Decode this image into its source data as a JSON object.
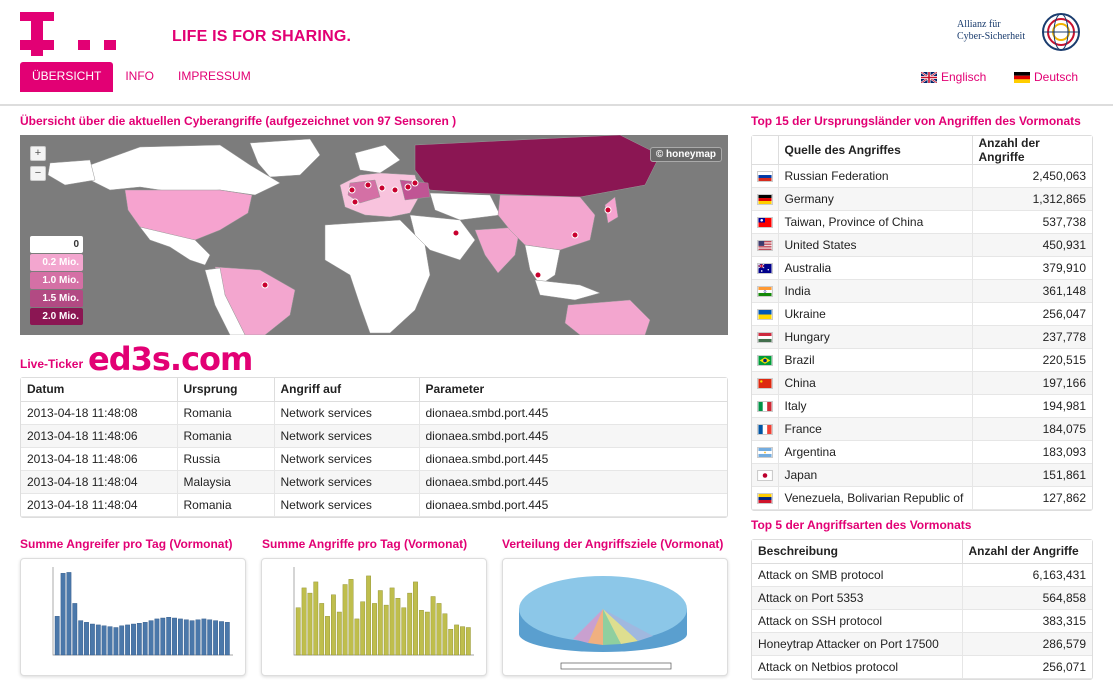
{
  "header": {
    "slogan": "LIFE IS FOR SHARING.",
    "partner_logo_text_1": "Allianz für",
    "partner_logo_text_2": "Cyber-Sicherheit"
  },
  "nav": [
    {
      "label": "ÜBERSICHT",
      "active": true
    },
    {
      "label": "INFO",
      "active": false
    },
    {
      "label": "IMPRESSUM",
      "active": false
    }
  ],
  "languages": [
    {
      "label": "Englisch",
      "flag": "uk-flag-icon"
    },
    {
      "label": "Deutsch",
      "flag": "germany-flag-icon"
    }
  ],
  "map_section": {
    "title": "Übersicht über die aktuellen Cyberangriffe (aufgezeichnet von 97 Sensoren )",
    "zoom_in": "+",
    "zoom_out": "−",
    "badge": "© honeymap",
    "legend": [
      "0",
      "0.2 Mio.",
      "1.0 Mio.",
      "1.5 Mio.",
      "2.0 Mio."
    ],
    "legend_colors": [
      "#ffffff",
      "#f3a6cf",
      "#d470a5",
      "#b24a83",
      "#8b1653"
    ]
  },
  "live_ticker": {
    "title": "Live-Ticker",
    "watermark": "ed3s.com",
    "columns": [
      "Datum",
      "Ursprung",
      "Angriff auf",
      "Parameter"
    ],
    "rows": [
      [
        "2013-04-18 11:48:08",
        "Romania",
        "Network services",
        "dionaea.smbd.port.445"
      ],
      [
        "2013-04-18 11:48:06",
        "Romania",
        "Network services",
        "dionaea.smbd.port.445"
      ],
      [
        "2013-04-18 11:48:06",
        "Russia",
        "Network services",
        "dionaea.smbd.port.445"
      ],
      [
        "2013-04-18 11:48:04",
        "Malaysia",
        "Network services",
        "dionaea.smbd.port.445"
      ],
      [
        "2013-04-18 11:48:04",
        "Romania",
        "Network services",
        "dionaea.smbd.port.445"
      ]
    ]
  },
  "charts": {
    "angreifer_title": "Summe Angreifer pro Tag (Vormonat)",
    "angriffe_title": "Summe Angriffe pro Tag (Vormonat)",
    "verteilung_title": "Verteilung der Angriffsziele (Vormonat)"
  },
  "top_countries": {
    "title": "Top 15 der Ursprungsländer von Angriffen des Vormonats",
    "columns": [
      "Quelle des Angriffes",
      "Anzahl der Angriffe"
    ],
    "rows": [
      {
        "flag": "russia-flag-icon",
        "country": "Russian Federation",
        "count": "2,450,063"
      },
      {
        "flag": "germany-flag-icon",
        "country": "Germany",
        "count": "1,312,865"
      },
      {
        "flag": "taiwan-flag-icon",
        "country": "Taiwan, Province of China",
        "count": "537,738"
      },
      {
        "flag": "usa-flag-icon",
        "country": "United States",
        "count": "450,931"
      },
      {
        "flag": "australia-flag-icon",
        "country": "Australia",
        "count": "379,910"
      },
      {
        "flag": "india-flag-icon",
        "country": "India",
        "count": "361,148"
      },
      {
        "flag": "ukraine-flag-icon",
        "country": "Ukraine",
        "count": "256,047"
      },
      {
        "flag": "hungary-flag-icon",
        "country": "Hungary",
        "count": "237,778"
      },
      {
        "flag": "brazil-flag-icon",
        "country": "Brazil",
        "count": "220,515"
      },
      {
        "flag": "china-flag-icon",
        "country": "China",
        "count": "197,166"
      },
      {
        "flag": "italy-flag-icon",
        "country": "Italy",
        "count": "194,981"
      },
      {
        "flag": "france-flag-icon",
        "country": "France",
        "count": "184,075"
      },
      {
        "flag": "argentina-flag-icon",
        "country": "Argentina",
        "count": "183,093"
      },
      {
        "flag": "japan-flag-icon",
        "country": "Japan",
        "count": "151,861"
      },
      {
        "flag": "venezuela-flag-icon",
        "country": "Venezuela, Bolivarian Republic of",
        "count": "127,862"
      }
    ]
  },
  "top_attacks": {
    "title": "Top 5 der Angriffsarten des Vormonats",
    "columns": [
      "Beschreibung",
      "Anzahl der Angriffe"
    ],
    "rows": [
      {
        "desc": "Attack on SMB protocol",
        "count": "6,163,431"
      },
      {
        "desc": "Attack on Port 5353",
        "count": "564,858"
      },
      {
        "desc": "Attack on SSH protocol",
        "count": "383,315"
      },
      {
        "desc": "Honeytrap Attacker on Port 17500",
        "count": "286,579"
      },
      {
        "desc": "Attack on Netbios protocol",
        "count": "256,071"
      }
    ]
  },
  "colors": {
    "brand": "#e20074",
    "map_bg": "#7c7c7c"
  }
}
